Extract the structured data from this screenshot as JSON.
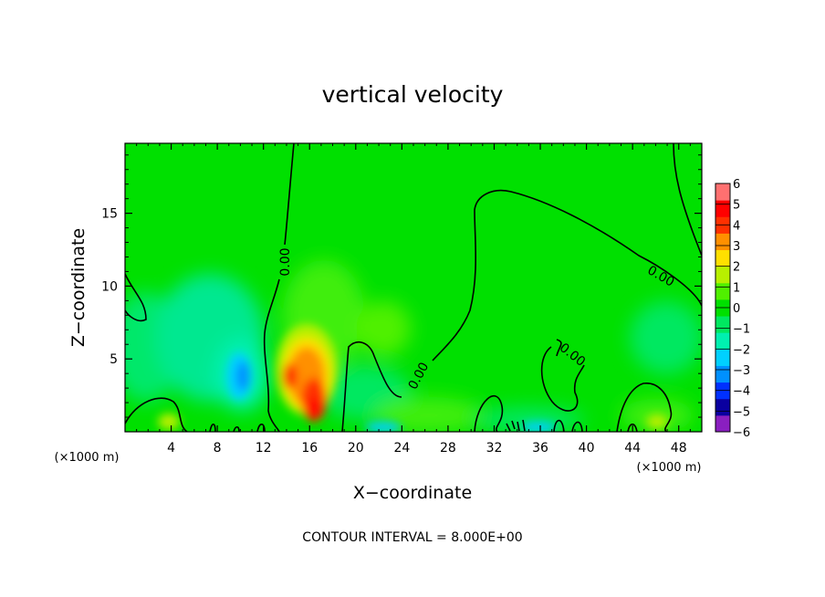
{
  "chart_data": {
    "type": "heatmap",
    "title": "vertical velocity",
    "xlabel": "X−coordinate",
    "ylabel": "Z−coordinate",
    "x_unit": "(×1000 m)",
    "x_unit_right": "(×1000 m)",
    "xlim": [
      0,
      50
    ],
    "ylim": [
      0,
      19.8
    ],
    "x_ticks": [
      4,
      8,
      12,
      16,
      20,
      24,
      28,
      32,
      36,
      40,
      44,
      48
    ],
    "y_ticks": [
      5,
      10,
      15
    ],
    "contour_interval_text": "CONTOUR INTERVAL = 8.000E+00",
    "contour_labels": [
      "0.00",
      "0.00",
      "0.00",
      "0.00"
    ],
    "colorbar": {
      "min": -6,
      "max": 6,
      "ticks": [
        "6",
        "5",
        "4",
        "3",
        "2",
        "1",
        "0",
        "−1",
        "−2",
        "−3",
        "−4",
        "−5",
        "−6"
      ],
      "colors": [
        "#8a1fc0",
        "#0a00a0",
        "#0030ff",
        "#0090ff",
        "#00d0ff",
        "#00f0b0",
        "#00e860",
        "#00e000",
        "#50f000",
        "#b8f000",
        "#ffe000",
        "#ff9000",
        "#ff3000",
        "#ff0000",
        "#ff7070"
      ]
    },
    "features": [
      {
        "kind": "updraft",
        "x": 16.3,
        "z": 1.6,
        "value": 5.0
      },
      {
        "kind": "updraft",
        "x": 15.2,
        "z": 3.6,
        "value": 3.8
      },
      {
        "kind": "updraft",
        "x": 16.0,
        "z": 6.5,
        "value": 1.5
      },
      {
        "kind": "downdraft",
        "x": 10.2,
        "z": 3.6,
        "value": -2.5
      },
      {
        "kind": "downdraft",
        "x": 7.0,
        "z": 7.0,
        "value": -0.9
      },
      {
        "kind": "downdraft",
        "x": 21.0,
        "z": 4.0,
        "value": -0.6
      },
      {
        "kind": "downdraft",
        "x": 46.0,
        "z": 7.0,
        "value": -0.6
      }
    ]
  }
}
